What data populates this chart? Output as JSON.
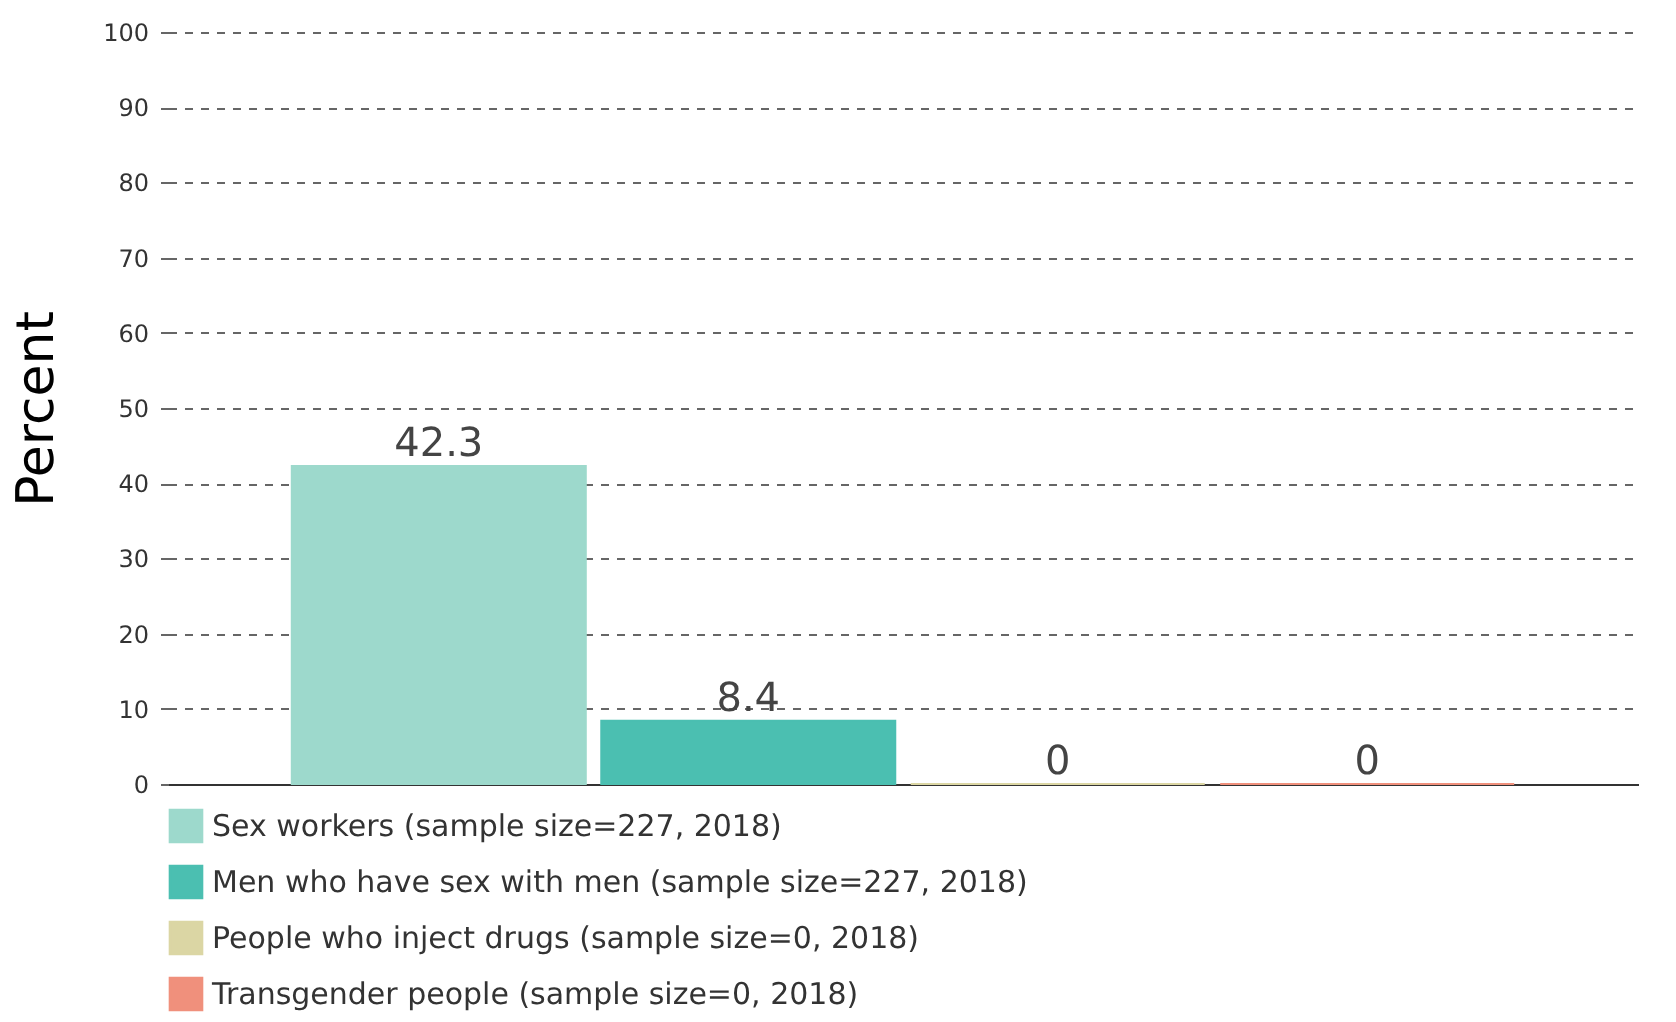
{
  "chart_data": {
    "type": "bar",
    "ylabel": "Percent",
    "categories": [
      null,
      null,
      null,
      null
    ],
    "series": [
      {
        "name": "Sex workers (sample size=227, 2018)",
        "color": "#9dd9cc",
        "values": [
          42.3,
          null,
          null,
          null
        ]
      },
      {
        "name": "Men who have sex with men (sample size=227, 2018)",
        "color": "#4bbfb1",
        "values": [
          null,
          8.4,
          null,
          null
        ]
      },
      {
        "name": "People who inject drugs (sample size=0, 2018)",
        "color": "#dbd6a4",
        "values": [
          null,
          null,
          0,
          null
        ]
      },
      {
        "name": "Transgender people (sample size=0, 2018)",
        "color": "#f0907c",
        "values": [
          null,
          null,
          null,
          0
        ]
      }
    ],
    "ylim": [
      0,
      100
    ],
    "yticks": [
      0,
      10,
      20,
      30,
      40,
      50,
      60,
      70,
      80,
      90,
      100
    ],
    "grid": "y",
    "line_style": "dashed",
    "legend": "bottom",
    "tick_labels": "y",
    "data_labels": true
  }
}
